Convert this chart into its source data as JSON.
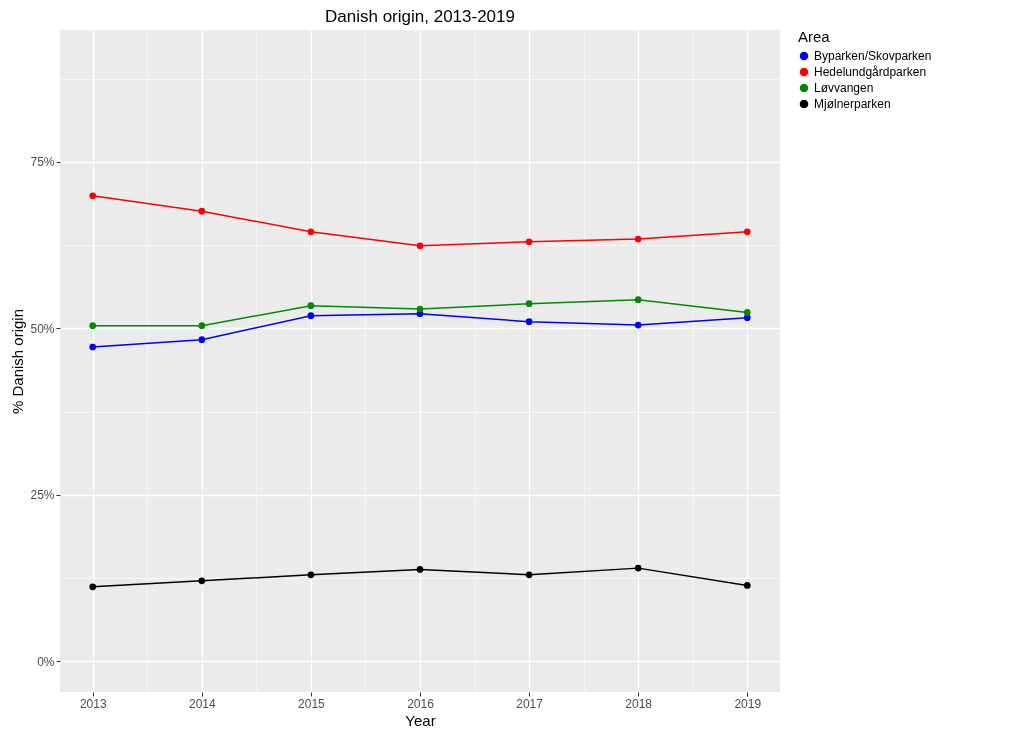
{
  "chart_data": {
    "type": "line",
    "title": "Danish origin, 2013-2019",
    "xlabel": "Year",
    "ylabel": "% Danish origin",
    "legend_title": "Area",
    "x": [
      2013,
      2014,
      2015,
      2016,
      2017,
      2018,
      2019
    ],
    "series": [
      {
        "name": "Byparken/Skovparken",
        "color": "#0000ff",
        "values": [
          47.2,
          48.3,
          51.9,
          52.2,
          51.0,
          50.5,
          51.6
        ]
      },
      {
        "name": "Hedelundgårdparken",
        "color": "#ff0000",
        "values": [
          69.9,
          67.6,
          64.5,
          62.4,
          63.0,
          63.4,
          64.5
        ]
      },
      {
        "name": "Løvvangen",
        "color": "#008b00",
        "values": [
          50.4,
          50.4,
          53.4,
          52.9,
          53.7,
          54.3,
          52.4
        ]
      },
      {
        "name": "Mjølnerparken",
        "color": "#000000",
        "values": [
          11.2,
          12.1,
          13.0,
          13.8,
          13.0,
          14.0,
          11.4
        ]
      }
    ],
    "xlim": [
      2012.7,
      2019.3
    ],
    "xticks": [
      2013,
      {
        "value": 2013.5,
        "label": null
      },
      2014,
      {
        "value": 2014.5,
        "label": null
      },
      2015,
      {
        "value": 2015.5,
        "label": null
      },
      2016,
      {
        "value": 2016.5,
        "label": null
      },
      2017,
      {
        "value": 2017.5,
        "label": null
      },
      2018,
      {
        "value": 2018.5,
        "label": null
      },
      2019
    ],
    "ylim": [
      -4.6,
      94.8
    ],
    "yticks": [
      {
        "value": 0,
        "label": "0%"
      },
      {
        "value": 12.5,
        "label": null
      },
      {
        "value": 25,
        "label": "25%"
      },
      {
        "value": 37.5,
        "label": null
      },
      {
        "value": 50,
        "label": "50%"
      },
      {
        "value": 62.5,
        "label": null
      },
      {
        "value": 75,
        "label": "75%"
      },
      {
        "value": 87.5,
        "label": null
      }
    ],
    "grid": true,
    "legend": "right",
    "marker": "circle",
    "line_style": "solid"
  }
}
